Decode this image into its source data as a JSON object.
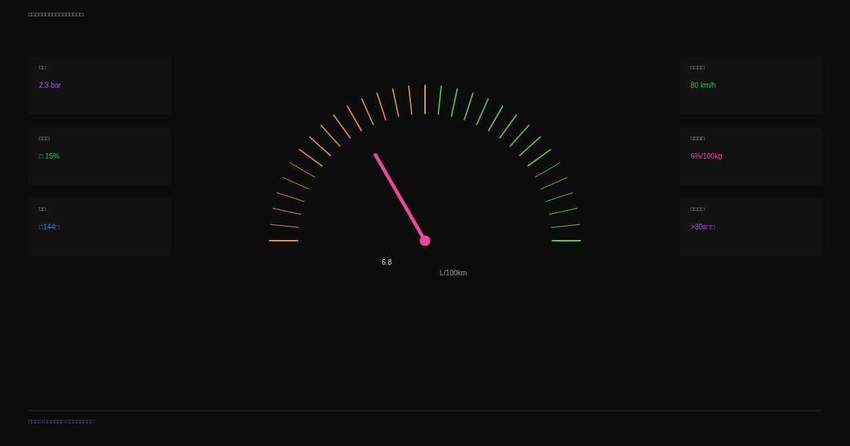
{
  "chart_data": [
    {
      "type": "other",
      "categories": [
        "□□",
        "□□□",
        "□□"
      ],
      "annotations": [
        "2.3 bar",
        "□ 15%",
        "□144□"
      ]
    },
    {
      "type": "other",
      "title": "□□□□□□□□□□□□□□□□",
      "values": [
        6.8
      ],
      "data_labels": true,
      "annotations": [
        "L/100km",
        "□□□□·□□□□□□·□□□□□□□□"
      ]
    },
    {
      "type": "other",
      "categories": [
        "□□□□",
        "□□□□",
        "□□□□"
      ],
      "annotations": [
        "80 km/h",
        "6%/100kg",
        ">30s□□"
      ]
    }
  ]
}
